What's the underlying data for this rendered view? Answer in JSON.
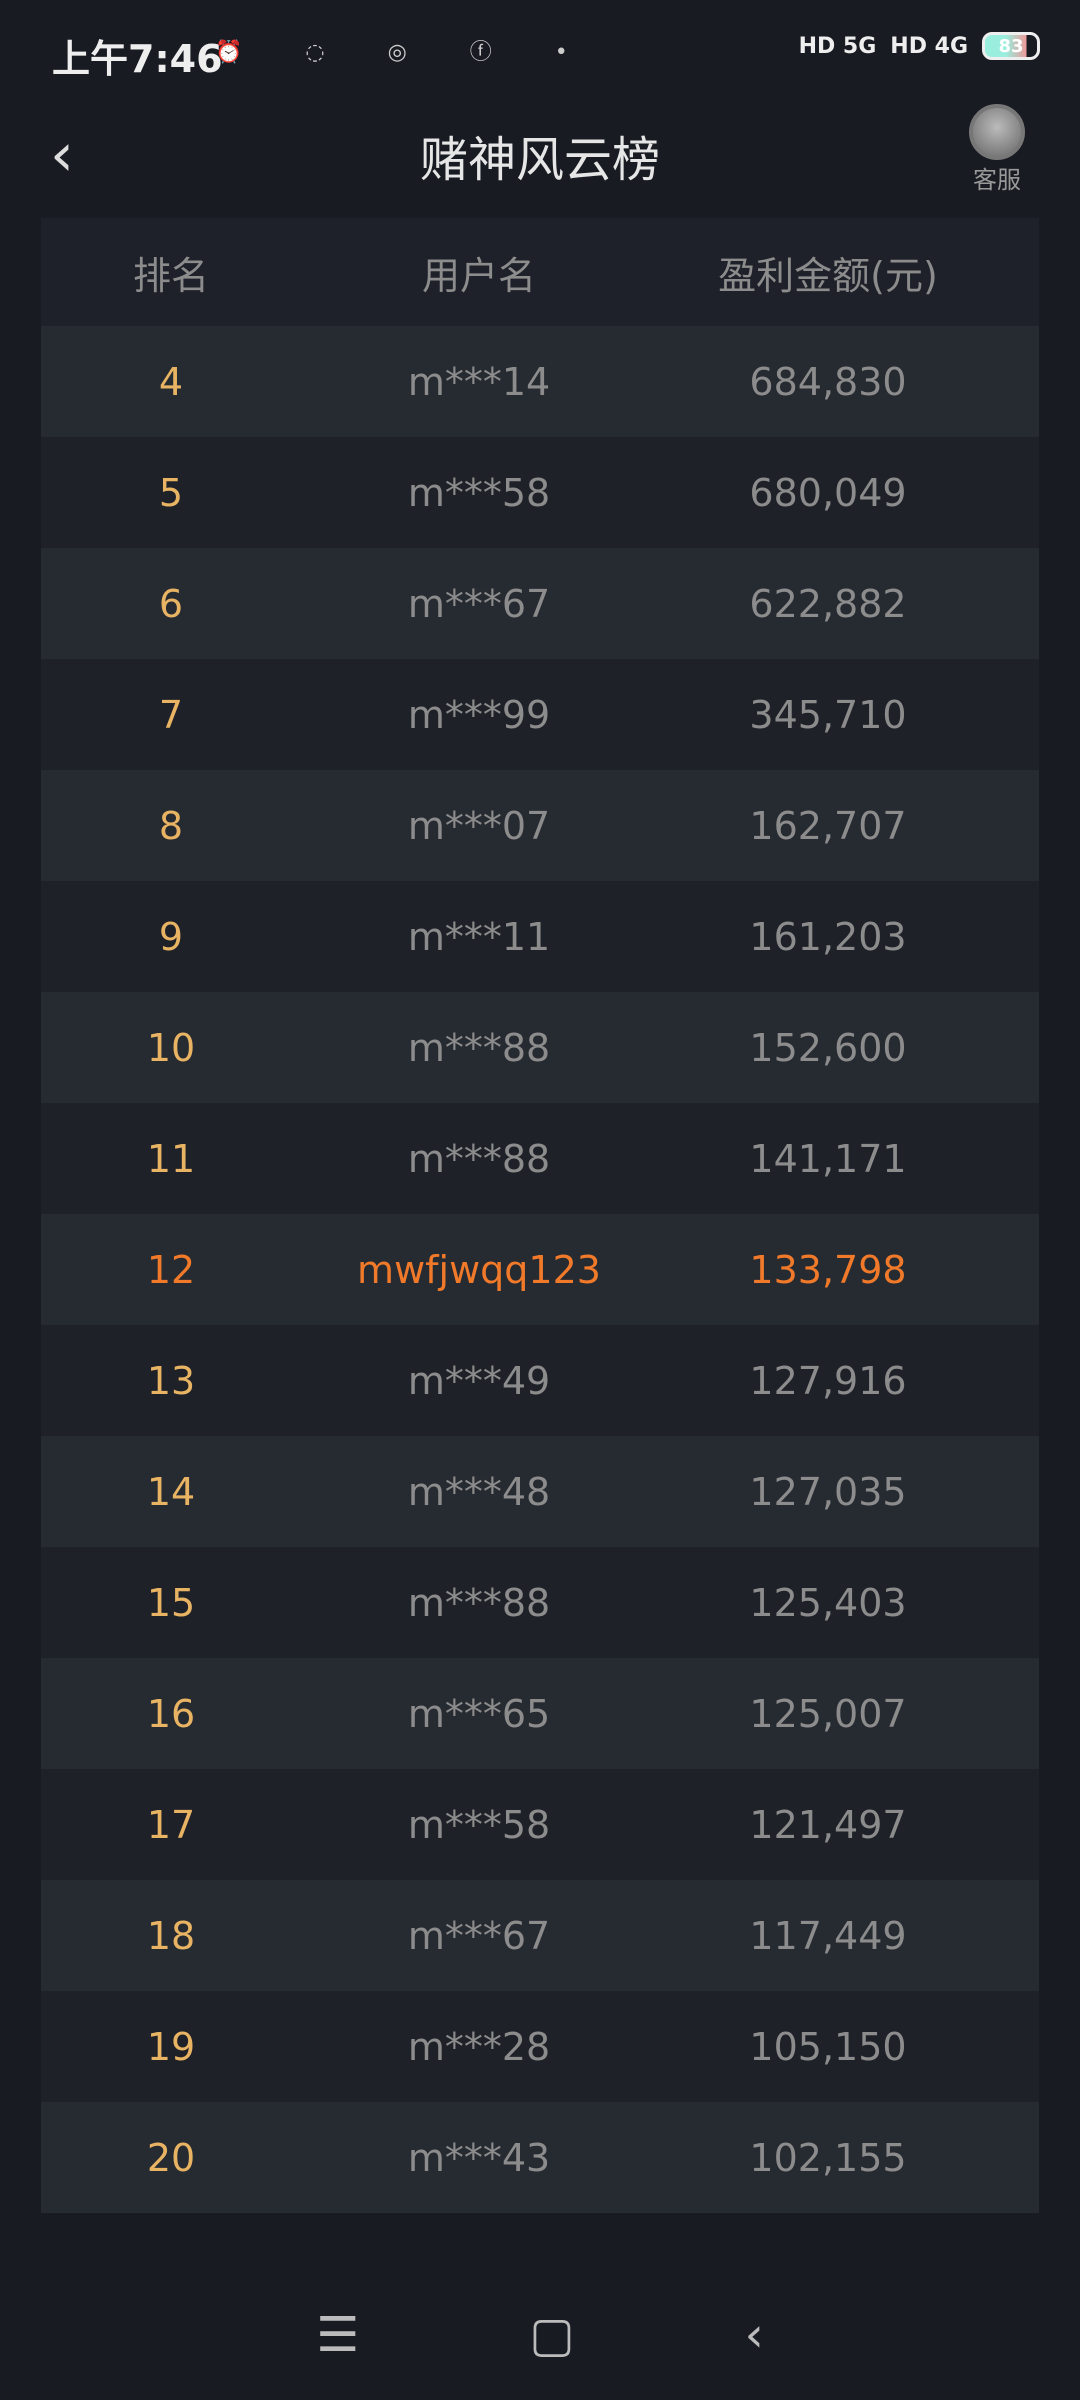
{
  "status": {
    "time": "上午7:46",
    "icons": [
      "alarm-icon",
      "wechat-icon",
      "hotspot-icon",
      "mode-icon",
      "dot-icon"
    ],
    "net1": "HD 5G",
    "net2": "HD 4G",
    "battery": "83"
  },
  "header": {
    "title": "赌神风云榜",
    "back": "‹",
    "service": "客服"
  },
  "table": {
    "columns": [
      "排名",
      "用户名",
      "盈利金额(元)"
    ],
    "rows": [
      {
        "rank": "4",
        "user": "m***14",
        "amount": "684,830"
      },
      {
        "rank": "5",
        "user": "m***58",
        "amount": "680,049"
      },
      {
        "rank": "6",
        "user": "m***67",
        "amount": "622,882"
      },
      {
        "rank": "7",
        "user": "m***99",
        "amount": "345,710"
      },
      {
        "rank": "8",
        "user": "m***07",
        "amount": "162,707"
      },
      {
        "rank": "9",
        "user": "m***11",
        "amount": "161,203"
      },
      {
        "rank": "10",
        "user": "m***88",
        "amount": "152,600"
      },
      {
        "rank": "11",
        "user": "m***88",
        "amount": "141,171"
      },
      {
        "rank": "12",
        "user": "mwfjwqq123",
        "amount": "133,798",
        "highlight": true
      },
      {
        "rank": "13",
        "user": "m***49",
        "amount": "127,916"
      },
      {
        "rank": "14",
        "user": "m***48",
        "amount": "127,035"
      },
      {
        "rank": "15",
        "user": "m***88",
        "amount": "125,403"
      },
      {
        "rank": "16",
        "user": "m***65",
        "amount": "125,007"
      },
      {
        "rank": "17",
        "user": "m***58",
        "amount": "121,497"
      },
      {
        "rank": "18",
        "user": "m***67",
        "amount": "117,449"
      },
      {
        "rank": "19",
        "user": "m***28",
        "amount": "105,150"
      },
      {
        "rank": "20",
        "user": "m***43",
        "amount": "102,155"
      }
    ]
  },
  "nav": {
    "menu": "☰",
    "home": "▢",
    "back": "‹"
  },
  "colors": {
    "rank": "#e8b463",
    "highlight": "#f07a2a",
    "background": "#181b22"
  }
}
